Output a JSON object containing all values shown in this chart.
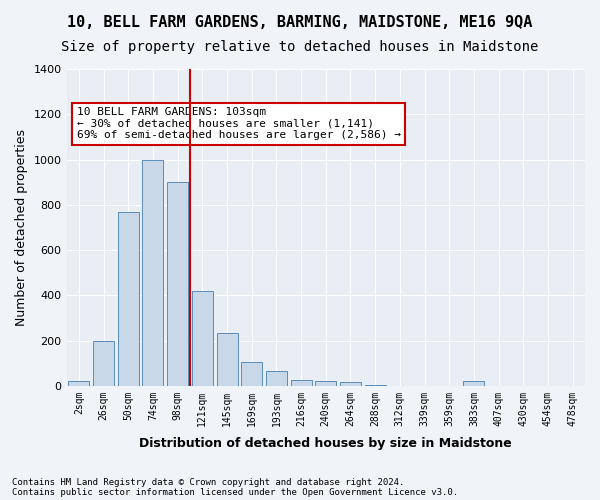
{
  "title": "10, BELL FARM GARDENS, BARMING, MAIDSTONE, ME16 9QA",
  "subtitle": "Size of property relative to detached houses in Maidstone",
  "xlabel": "Distribution of detached houses by size in Maidstone",
  "ylabel": "Number of detached properties",
  "categories": [
    "2sqm",
    "26sqm",
    "50sqm",
    "74sqm",
    "98sqm",
    "121sqm",
    "145sqm",
    "169sqm",
    "193sqm",
    "216sqm",
    "240sqm",
    "264sqm",
    "288sqm",
    "312sqm",
    "339sqm",
    "359sqm",
    "383sqm",
    "407sqm",
    "430sqm",
    "454sqm",
    "478sqm"
  ],
  "values": [
    20,
    200,
    770,
    1000,
    900,
    420,
    235,
    105,
    65,
    25,
    20,
    15,
    5,
    0,
    0,
    0,
    20,
    0,
    0,
    0,
    0
  ],
  "bar_color": "#c8d8e8",
  "bar_edge_color": "#5b8db8",
  "vline_x": 4,
  "vline_color": "#cc0000",
  "annotation_text": "10 BELL FARM GARDENS: 103sqm\n← 30% of detached houses are smaller (1,141)\n69% of semi-detached houses are larger (2,586) →",
  "annotation_box_color": "#ffffff",
  "annotation_box_edge": "#cc0000",
  "ylim": [
    0,
    1400
  ],
  "yticks": [
    0,
    200,
    400,
    600,
    800,
    1000,
    1200,
    1400
  ],
  "footer1": "Contains HM Land Registry data © Crown copyright and database right 2024.",
  "footer2": "Contains public sector information licensed under the Open Government Licence v3.0.",
  "bg_color": "#f0f4f8",
  "plot_bg_color": "#e8eef4",
  "grid_color": "#ffffff",
  "title_fontsize": 11,
  "subtitle_fontsize": 10,
  "label_fontsize": 9
}
